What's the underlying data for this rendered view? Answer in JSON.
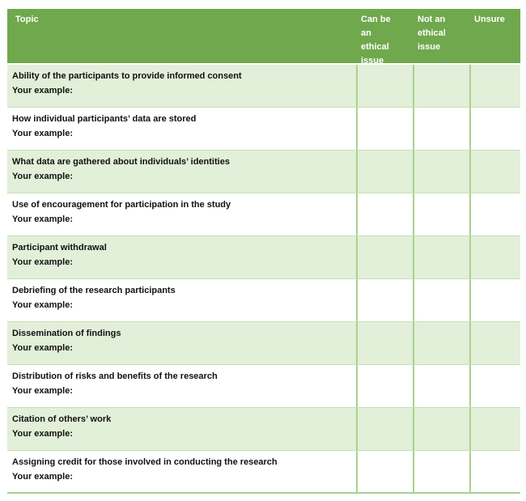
{
  "table": {
    "header": {
      "topic": "Topic",
      "can_be": "Can be\nan\nethical\nissue",
      "not_an": "Not an\nethical\nissue",
      "unsure": "Unsure"
    },
    "rows": [
      {
        "title": "Ability of the participants to provide informed consent",
        "example_label": "Your example:"
      },
      {
        "title": "How individual participants’ data are stored",
        "example_label": "Your example:"
      },
      {
        "title": "What data are gathered about individuals’ identities",
        "example_label": "Your example:"
      },
      {
        "title": "Use of encouragement for participation in the study",
        "example_label": "Your example:"
      },
      {
        "title": "Participant withdrawal",
        "example_label": "Your example:"
      },
      {
        "title": "Debriefing of the research participants",
        "example_label": "Your example:"
      },
      {
        "title": "Dissemination of findings",
        "example_label": "Your example:"
      },
      {
        "title": "Distribution of risks and benefits of the research",
        "example_label": "Your example:"
      },
      {
        "title": "Citation of others’ work",
        "example_label": "Your example:"
      },
      {
        "title": "Assigning credit for those involved in conducting the research",
        "example_label": "Your example:"
      }
    ],
    "colors": {
      "header_bg": "#70A84D",
      "header_text": "#FFFFFF",
      "alt_row_bg": "#E2EFD9",
      "grid_line": "#A9D18E",
      "row_divider": "#C5E0B3",
      "body_text": "#111111"
    }
  }
}
